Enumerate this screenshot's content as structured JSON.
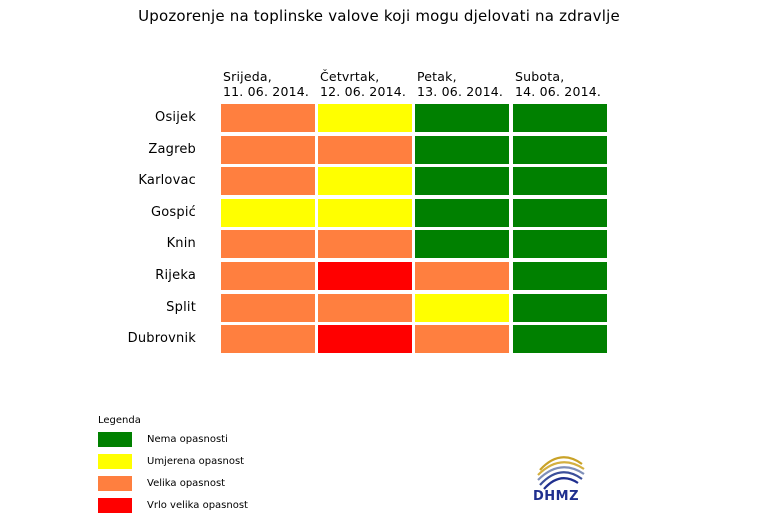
{
  "title": "Upozorenje na toplinske valove koji mogu djelovati na zdravlje",
  "colors": {
    "nema": "#008000",
    "umjerena": "#ffff00",
    "velika": "#ff7f3f",
    "vrlo_velika": "#ff0000"
  },
  "chart_data": {
    "type": "heatmap",
    "title": "Upozorenje na toplinske valove koji mogu djelovati na zdravlje",
    "columns": [
      {
        "day": "Srijeda,",
        "date": "11. 06. 2014."
      },
      {
        "day": "Četvrtak,",
        "date": "12. 06. 2014."
      },
      {
        "day": "Petak,",
        "date": "13. 06. 2014."
      },
      {
        "day": "Subota,",
        "date": "14. 06. 2014."
      }
    ],
    "rows": [
      {
        "city": "Osijek",
        "levels": [
          "velika",
          "umjerena",
          "nema",
          "nema"
        ]
      },
      {
        "city": "Zagreb",
        "levels": [
          "velika",
          "velika",
          "nema",
          "nema"
        ]
      },
      {
        "city": "Karlovac",
        "levels": [
          "velika",
          "umjerena",
          "nema",
          "nema"
        ]
      },
      {
        "city": "Gospić",
        "levels": [
          "umjerena",
          "umjerena",
          "nema",
          "nema"
        ]
      },
      {
        "city": "Knin",
        "levels": [
          "velika",
          "velika",
          "nema",
          "nema"
        ]
      },
      {
        "city": "Rijeka",
        "levels": [
          "velika",
          "vrlo_velika",
          "velika",
          "nema"
        ]
      },
      {
        "city": "Split",
        "levels": [
          "velika",
          "velika",
          "umjerena",
          "nema"
        ]
      },
      {
        "city": "Dubrovnik",
        "levels": [
          "velika",
          "vrlo_velika",
          "velika",
          "nema"
        ]
      }
    ]
  },
  "legend": {
    "title": "Legenda",
    "items": [
      {
        "key": "nema",
        "label": "Nema opasnosti"
      },
      {
        "key": "umjerena",
        "label": "Umjerena opasnost"
      },
      {
        "key": "velika",
        "label": "Velika opasnost"
      },
      {
        "key": "vrlo_velika",
        "label": "Vrlo velika opasnost"
      }
    ]
  },
  "logo": {
    "text": "DHMZ",
    "icon": "dhmz-logo-icon"
  }
}
